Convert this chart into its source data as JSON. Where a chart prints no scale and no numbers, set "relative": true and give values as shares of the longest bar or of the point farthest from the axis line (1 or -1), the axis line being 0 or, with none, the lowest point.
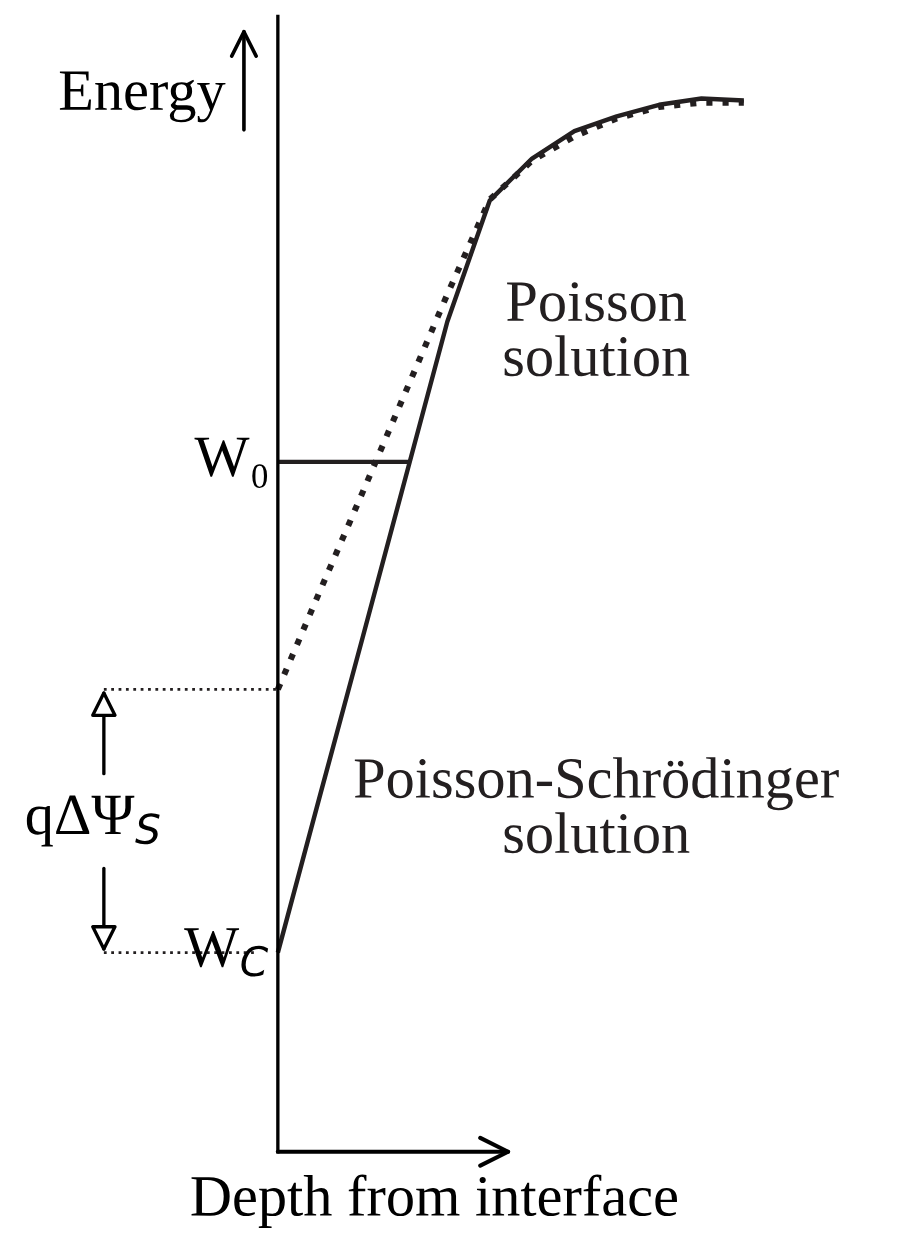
{
  "chart_data": {
    "type": "line",
    "relative": true,
    "xlabel": "Depth from interface",
    "ylabel": "Energy",
    "legend": false,
    "marker": "none",
    "categories": [
      null,
      null,
      null,
      null,
      null,
      null,
      null,
      null,
      null,
      null,
      null,
      null
    ],
    "series": [
      {
        "name": "Poisson solution",
        "color": "#231f20",
        "line_style": "dotted",
        "values": [
          0.439,
          0.533,
          0.626,
          0.72,
          0.814,
          0.904,
          0.941,
          0.964,
          0.981,
          0.992,
          0.996,
          0.996
        ]
      },
      {
        "name": "Poisson-Schrödinger solution",
        "color": "#231f20",
        "line_style": "solid",
        "values": [
          0.189,
          0.339,
          0.488,
          0.638,
          0.788,
          0.903,
          0.943,
          0.969,
          0.983,
          0.994,
          1,
          0.998
        ]
      }
    ],
    "ref_lines": [
      {
        "axis": "y",
        "value": 0.655,
        "label": "W₀",
        "color": "#231f20",
        "line_style": "solid"
      }
    ],
    "annotations": [
      "W$_{C}$",
      "qΔΨ$_{S}$"
    ]
  }
}
